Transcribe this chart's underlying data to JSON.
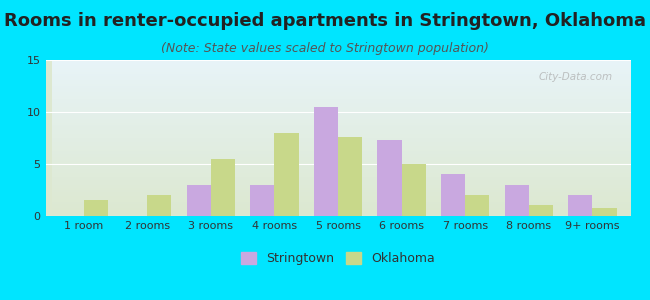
{
  "title": "Rooms in renter-occupied apartments in Stringtown, Oklahoma",
  "subtitle": "(Note: State values scaled to Stringtown population)",
  "categories": [
    "1 room",
    "2 rooms",
    "3 rooms",
    "4 rooms",
    "5 rooms",
    "6 rooms",
    "7 rooms",
    "8 rooms",
    "9+ rooms"
  ],
  "stringtown": [
    0,
    0,
    3.0,
    3.0,
    10.5,
    7.3,
    4.0,
    3.0,
    2.0
  ],
  "oklahoma": [
    1.5,
    2.0,
    5.5,
    8.0,
    7.6,
    5.0,
    2.0,
    1.1,
    0.8
  ],
  "stringtown_color": "#c9a8e0",
  "oklahoma_color": "#c8d88a",
  "background_outer": "#00e5ff",
  "background_inner_top": "#e8f4f8",
  "background_inner_bottom": "#dce8d0",
  "ylim": [
    0,
    15
  ],
  "yticks": [
    0,
    5,
    10,
    15
  ],
  "bar_width": 0.38,
  "title_fontsize": 13,
  "subtitle_fontsize": 9,
  "tick_fontsize": 8,
  "legend_fontsize": 9,
  "watermark": "City-Data.com"
}
